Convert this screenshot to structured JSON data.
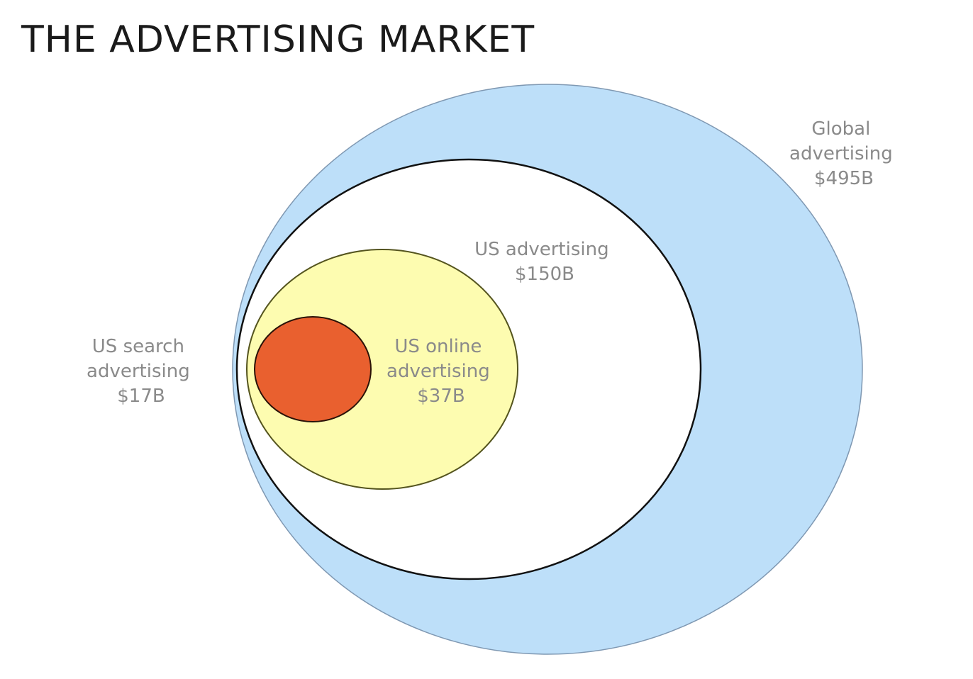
{
  "title": "THE ADVERTISING MARKET",
  "markets": [
    {
      "id": "global",
      "label_lines": [
        "Global",
        "advertising",
        "$495B"
      ],
      "value_billion_usd": 495,
      "fill": "#bddff9",
      "stroke": "#7f98b2"
    },
    {
      "id": "us",
      "label_lines": [
        "US advertising",
        "$150B"
      ],
      "value_billion_usd": 150,
      "fill": "#ffffff",
      "stroke": "#111111"
    },
    {
      "id": "us_online",
      "label_lines": [
        "US online",
        "advertising",
        "$37B"
      ],
      "value_billion_usd": 37,
      "fill": "#fdfcb0",
      "stroke": "#54541e"
    },
    {
      "id": "us_search",
      "label_lines": [
        "US search",
        "advertising",
        "$17B"
      ],
      "value_billion_usd": 17,
      "fill": "#e9602f",
      "stroke": "#2a1208"
    }
  ]
}
